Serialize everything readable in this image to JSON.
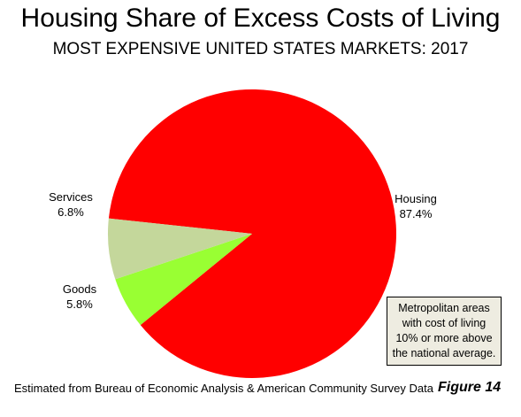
{
  "chart_data": {
    "type": "pie",
    "title": "Housing Share of Excess Costs of Living",
    "subtitle": "MOST EXPENSIVE UNITED STATES MARKETS: 2017",
    "slices": [
      {
        "name": "Housing",
        "value": 87.4,
        "value_label": "87.4%",
        "color": "#ff0000"
      },
      {
        "name": "Goods",
        "value": 5.8,
        "value_label": "5.8%",
        "color": "#99ff33"
      },
      {
        "name": "Services",
        "value": 6.8,
        "value_label": "6.8%",
        "color": "#c4d79b"
      }
    ],
    "note": [
      "Metropolitan areas",
      "with cost of living",
      "10% or more above",
      "the national average."
    ],
    "source": "Estimated from Bureau of Economic Analysis & American Community Survey Data",
    "figure_label": "Figure 14"
  }
}
